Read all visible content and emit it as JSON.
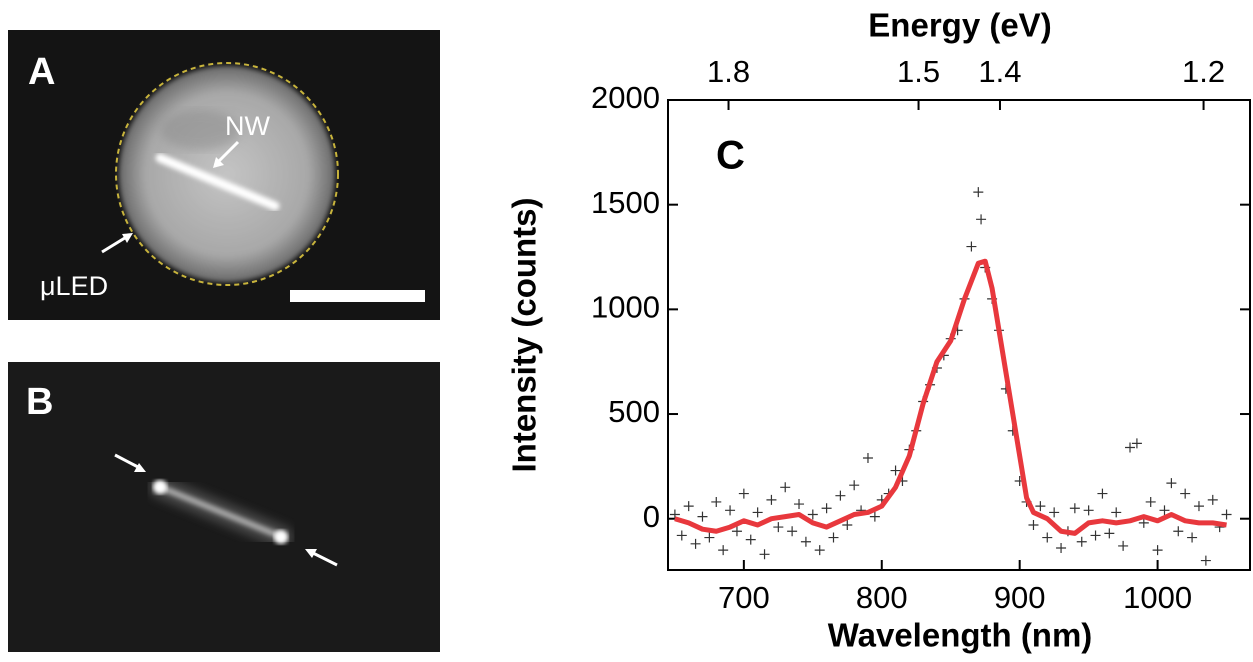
{
  "panels": {
    "a": {
      "label": "A",
      "annotations": [
        "NW",
        "μLED"
      ]
    },
    "b": {
      "label": "B"
    }
  },
  "chart_data": {
    "type": "scatter",
    "panel_label": "C",
    "xlabel": "Wavelength (nm)",
    "ylabel": "Intensity (counts)",
    "x2label": "Energy (eV)",
    "xlim": [
      645,
      1067
    ],
    "ylim": [
      -245,
      2000
    ],
    "xticks": [
      700,
      800,
      900,
      1000
    ],
    "yticks": [
      0,
      500,
      1000,
      1500,
      2000
    ],
    "x2ticks": [
      1.8,
      1.5,
      1.4,
      1.2
    ],
    "series": [
      {
        "type": "scatter",
        "marker": "+",
        "color": "#333333",
        "x": [
          650,
          655,
          660,
          665,
          670,
          675,
          680,
          685,
          690,
          695,
          700,
          705,
          710,
          715,
          720,
          725,
          730,
          735,
          740,
          745,
          750,
          755,
          760,
          765,
          770,
          775,
          780,
          785,
          790,
          795,
          800,
          805,
          810,
          815,
          820,
          825,
          830,
          835,
          840,
          845,
          850,
          855,
          860,
          865,
          870,
          872,
          875,
          880,
          885,
          890,
          895,
          900,
          905,
          910,
          915,
          920,
          925,
          930,
          935,
          940,
          945,
          950,
          955,
          960,
          965,
          970,
          975,
          980,
          985,
          990,
          995,
          1000,
          1005,
          1010,
          1015,
          1020,
          1025,
          1030,
          1035,
          1040,
          1045,
          1050
        ],
        "values": [
          20,
          -80,
          60,
          -120,
          10,
          -90,
          80,
          -150,
          40,
          -60,
          120,
          -100,
          30,
          -170,
          90,
          -40,
          150,
          -60,
          70,
          -110,
          20,
          -150,
          50,
          -90,
          110,
          -30,
          160,
          40,
          290,
          10,
          90,
          120,
          230,
          180,
          330,
          420,
          560,
          640,
          720,
          780,
          860,
          900,
          1050,
          1300,
          1560,
          1430,
          1200,
          1050,
          900,
          620,
          420,
          180,
          80,
          -30,
          60,
          -90,
          30,
          -140,
          -60,
          50,
          -110,
          40,
          -80,
          120,
          -70,
          30,
          -130,
          340,
          360,
          -20,
          80,
          -150,
          40,
          170,
          -60,
          120,
          -90,
          60,
          -200,
          90,
          -40,
          20
        ]
      },
      {
        "type": "line",
        "color": "#e8383d",
        "x": [
          650,
          660,
          670,
          680,
          690,
          700,
          710,
          720,
          730,
          740,
          750,
          760,
          770,
          780,
          790,
          800,
          810,
          820,
          830,
          840,
          850,
          860,
          870,
          875,
          880,
          890,
          900,
          905,
          910,
          920,
          930,
          940,
          950,
          960,
          970,
          980,
          990,
          1000,
          1010,
          1020,
          1030,
          1040,
          1050
        ],
        "values": [
          0,
          -20,
          -50,
          -60,
          -40,
          -10,
          -30,
          0,
          10,
          20,
          -20,
          -40,
          -10,
          20,
          30,
          60,
          150,
          300,
          550,
          750,
          850,
          1050,
          1220,
          1230,
          1100,
          700,
          300,
          100,
          30,
          0,
          -60,
          -70,
          -20,
          -10,
          -20,
          -10,
          10,
          -10,
          20,
          -10,
          -20,
          -20,
          -30
        ]
      }
    ]
  }
}
